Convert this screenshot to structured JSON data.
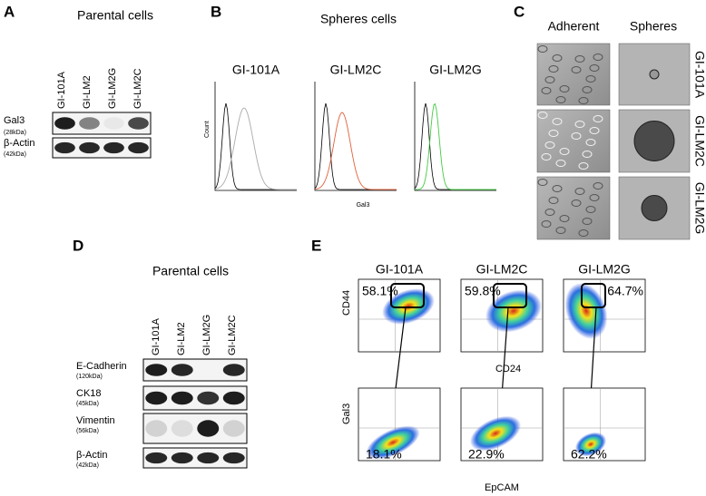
{
  "panels": {
    "A": {
      "label": "A",
      "title": "Parental cells",
      "lanes": [
        "GI-101A",
        "GI-LM2",
        "GI-LM2G",
        "GI-LM2C"
      ],
      "rows": [
        {
          "name": "Gal3",
          "size": "(28kDa)"
        },
        {
          "name": "β-Actin",
          "size": "(42kDa)"
        }
      ]
    },
    "B": {
      "label": "B",
      "title": "Spheres cells",
      "samples": [
        "GI-101A",
        "GI-LM2C",
        "GI-LM2G"
      ],
      "y_label": "Count",
      "x_label": "Gal3"
    },
    "C": {
      "label": "C",
      "columns": [
        "Adherent",
        "Spheres"
      ],
      "rows": [
        "GI-101A",
        "GI-LM2C",
        "GI-LM2G"
      ]
    },
    "D": {
      "label": "D",
      "title": "Parental cells",
      "lanes": [
        "GI-101A",
        "GI-LM2",
        "GI-LM2G",
        "GI-LM2C"
      ],
      "rows": [
        {
          "name": "E-Cadherin",
          "size": "(120kDa)"
        },
        {
          "name": "CK18",
          "size": "(45kDa)"
        },
        {
          "name": "Vimentin",
          "size": "(56kDa)"
        },
        {
          "name": "β-Actin",
          "size": "(42kDa)"
        }
      ]
    },
    "E": {
      "label": "E",
      "samples": [
        "GI-101A",
        "GI-LM2C",
        "GI-LM2G"
      ],
      "top": {
        "y_label": "CD44",
        "x_label": "CD24",
        "percents": [
          "58.1%",
          "59.8%",
          "64.7%"
        ]
      },
      "bottom": {
        "y_label": "Gal3",
        "x_label": "EpCAM",
        "percents": [
          "18.1%",
          "22.9%",
          "62.2%"
        ]
      }
    }
  }
}
